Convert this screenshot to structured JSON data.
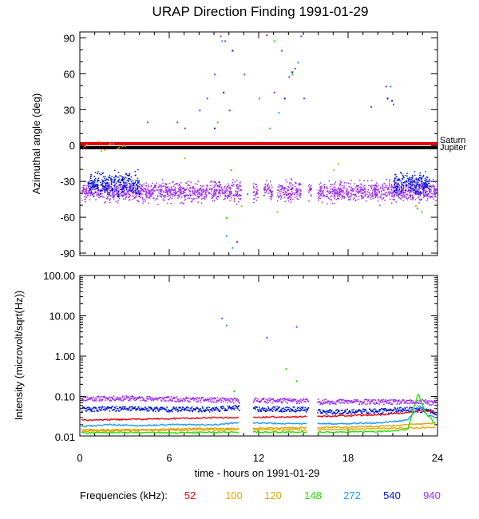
{
  "chart_data": [
    {
      "type": "scatter",
      "title": "URAP Direction Finding  1991-01-29",
      "ylabel": "Azimuthal angle (deg)",
      "xlim": [
        0,
        24
      ],
      "ylim": [
        -92,
        95
      ],
      "x_ticks": [
        "0",
        "6",
        "12",
        "18",
        "24"
      ],
      "y_ticks": [
        90,
        60,
        30,
        0,
        -30,
        -60,
        -90
      ],
      "reference_lines": [
        {
          "name": "Saturn",
          "y": 1,
          "color": "#e8000b"
        },
        {
          "name": "Jupiter",
          "y": -3,
          "color": "#000000"
        }
      ],
      "series": [
        {
          "name": "52",
          "color": "#e8000b",
          "points": [
            [
              0.1,
              2
            ],
            [
              0.2,
              -1
            ]
          ]
        },
        {
          "name": "100",
          "color": "#f5a000",
          "points": [
            [
              0.3,
              0
            ],
            [
              1.2,
              4
            ],
            [
              1.6,
              -3
            ],
            [
              1.9,
              1
            ],
            [
              2.5,
              -2
            ],
            [
              7.0,
              -10
            ],
            [
              10.3,
              -45
            ],
            [
              17.0,
              -20
            ]
          ]
        },
        {
          "name": "120",
          "color": "#d4a700",
          "points": [
            [
              0.4,
              1
            ],
            [
              1.4,
              -4
            ],
            [
              2.0,
              2
            ],
            [
              2.8,
              0
            ],
            [
              10.8,
              -50
            ],
            [
              13.2,
              -55
            ],
            [
              17.3,
              -15
            ],
            [
              22.5,
              -50
            ]
          ]
        },
        {
          "name": "148",
          "color": "#22e000",
          "points": [
            [
              2.2,
              2
            ],
            [
              2.6,
              -1
            ],
            [
              3.0,
              0
            ],
            [
              9.2,
              20
            ],
            [
              9.8,
              -60
            ],
            [
              10.1,
              -20
            ],
            [
              12.7,
              15
            ],
            [
              13.0,
              88
            ],
            [
              14.2,
              60
            ],
            [
              22.6,
              -52
            ],
            [
              22.9,
              -55
            ]
          ]
        },
        {
          "name": "272",
          "color": "#1a9aff",
          "points": [
            [
              9.5,
              88
            ],
            [
              9.8,
              -75
            ],
            [
              10.2,
              -85
            ],
            [
              11.2,
              -40
            ],
            [
              12.0,
              40
            ],
            [
              13.3,
              28
            ],
            [
              14.6,
              70
            ],
            [
              20.8,
              50
            ]
          ]
        },
        {
          "name": "540",
          "color": "#0014d4",
          "points": [
            [
              9.0,
              15
            ],
            [
              9.3,
              -30
            ],
            [
              9.6,
              45
            ],
            [
              10.2,
              80
            ],
            [
              13.7,
              40
            ],
            [
              14.2,
              62
            ],
            [
              20.6,
              40
            ],
            [
              20.9,
              38
            ]
          ]
        },
        {
          "name": "940",
          "color": "#9c2cf2",
          "points": [
            [
              4.5,
              20
            ],
            [
              6.5,
              20
            ],
            [
              7.0,
              15
            ],
            [
              8.0,
              30
            ],
            [
              8.5,
              40
            ],
            [
              9.0,
              60
            ],
            [
              9.4,
              92
            ],
            [
              9.7,
              88
            ],
            [
              10.0,
              30
            ],
            [
              10.5,
              -80
            ],
            [
              11.0,
              60
            ],
            [
              12.5,
              93
            ],
            [
              13.0,
              45
            ],
            [
              13.5,
              80
            ],
            [
              14.0,
              58
            ],
            [
              14.4,
              65
            ],
            [
              14.8,
              92
            ],
            [
              15.0,
              40
            ],
            [
              19.5,
              33
            ],
            [
              20.5,
              50
            ],
            [
              21.0,
              35
            ]
          ]
        }
      ],
      "bands": [
        {
          "series": "940",
          "x_ranges": [
            [
              0.1,
              10.8
            ],
            [
              11.6,
              11.9
            ],
            [
              12.3,
              12.9
            ],
            [
              13.2,
              14.8
            ],
            [
              15.3,
              15.5
            ],
            [
              15.9,
              23.9
            ]
          ],
          "center": -38,
          "spread": 5
        },
        {
          "series": "540",
          "x_ranges": [
            [
              0.5,
              4.0
            ],
            [
              21.0,
              23.5
            ]
          ],
          "center": -32,
          "spread": 6
        }
      ]
    },
    {
      "type": "line",
      "ylabel": "Intensity (microvolt/sqrt(Hz))",
      "xlabel": "time - hours on 1991-01-29",
      "xlim": [
        0,
        24
      ],
      "ylim": [
        0.0105,
        100
      ],
      "yscale": "log",
      "x_ticks": [
        "0",
        "6",
        "12",
        "18",
        "24"
      ],
      "y_ticks": [
        "100.00",
        "10.00",
        "1.00",
        "0.10",
        "0.01"
      ],
      "y_tick_values": [
        100,
        10,
        1,
        0.1,
        0.01
      ],
      "series": [
        {
          "name": "940",
          "color": "#9c2cf2",
          "x": [
            0.1,
            3,
            6,
            9,
            10.5,
            12,
            15,
            16,
            20,
            22,
            23,
            23.9
          ],
          "y": [
            0.092,
            0.094,
            0.09,
            0.085,
            0.082,
            0.084,
            0.08,
            0.078,
            0.076,
            0.075,
            0.076,
            0.072
          ]
        },
        {
          "name": "540",
          "color": "#0014d4",
          "x": [
            0.1,
            3,
            6,
            9,
            10.5,
            12,
            15,
            16,
            20,
            22,
            23,
            23.9
          ],
          "y": [
            0.05,
            0.052,
            0.05,
            0.05,
            0.055,
            0.05,
            0.05,
            0.043,
            0.045,
            0.05,
            0.048,
            0.042
          ]
        },
        {
          "name": "52",
          "color": "#e8000b",
          "x": [
            0.1,
            3,
            6,
            9,
            10.5,
            16,
            20,
            22,
            23,
            23.9
          ],
          "y": [
            0.026,
            0.027,
            0.028,
            0.03,
            0.03,
            0.032,
            0.035,
            0.04,
            0.045,
            0.04
          ]
        },
        {
          "name": "272",
          "color": "#1a9aff",
          "x": [
            0.1,
            2,
            4,
            6,
            9,
            10.5,
            16,
            20,
            22,
            22.8,
            23.3,
            23.9
          ],
          "y": [
            0.018,
            0.02,
            0.019,
            0.02,
            0.02,
            0.022,
            0.021,
            0.022,
            0.026,
            0.06,
            0.035,
            0.03
          ]
        },
        {
          "name": "120",
          "color": "#d4a700",
          "x": [
            0.1,
            4,
            8,
            10.5,
            16,
            20,
            22,
            23.9
          ],
          "y": [
            0.015,
            0.015,
            0.016,
            0.016,
            0.017,
            0.018,
            0.02,
            0.022
          ]
        },
        {
          "name": "100",
          "color": "#f5a000",
          "x": [
            0.1,
            6,
            10.5,
            16,
            20,
            23.9
          ],
          "y": [
            0.014,
            0.0145,
            0.015,
            0.015,
            0.016,
            0.017
          ]
        },
        {
          "name": "148",
          "color": "#22e000",
          "x": [
            0.1,
            3,
            6,
            9,
            10.5,
            16,
            20,
            22,
            22.7,
            23.2,
            23.9
          ],
          "y": [
            0.0125,
            0.013,
            0.0125,
            0.013,
            0.013,
            0.013,
            0.0135,
            0.015,
            0.12,
            0.04,
            0.02
          ]
        }
      ],
      "points": [
        {
          "series": "940",
          "x": 9.5,
          "y": 9
        },
        {
          "series": "272",
          "x": 9.8,
          "y": 6
        },
        {
          "series": "940",
          "x": 12.5,
          "y": 3
        },
        {
          "series": "940",
          "x": 14.5,
          "y": 5.5
        },
        {
          "series": "148",
          "x": 13.8,
          "y": 0.5
        },
        {
          "series": "148",
          "x": 14.5,
          "y": 0.25
        },
        {
          "series": "148",
          "x": 10.3,
          "y": 0.14
        },
        {
          "series": "272",
          "x": 13.2,
          "y": 0.06
        }
      ]
    }
  ],
  "legend": {
    "label": "Frequencies (kHz):",
    "items": [
      {
        "label": "52",
        "color": "#e8000b"
      },
      {
        "label": "100",
        "color": "#f5a000"
      },
      {
        "label": "120",
        "color": "#d4a700"
      },
      {
        "label": "148",
        "color": "#22e000"
      },
      {
        "label": "272",
        "color": "#1a9aff"
      },
      {
        "label": "540",
        "color": "#0014d4"
      },
      {
        "label": "940",
        "color": "#9c2cf2"
      }
    ]
  }
}
